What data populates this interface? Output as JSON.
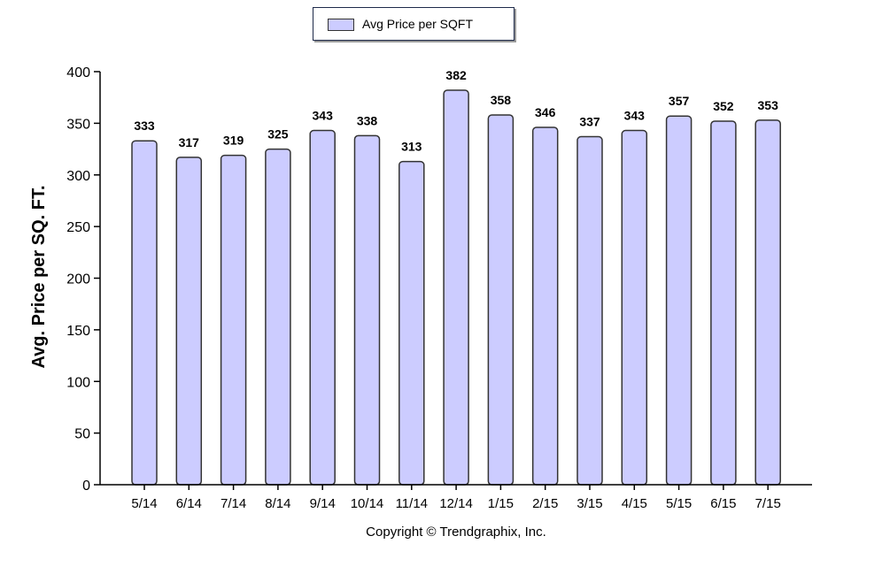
{
  "chart_data": {
    "type": "bar",
    "categories": [
      "5/14",
      "6/14",
      "7/14",
      "8/14",
      "9/14",
      "10/14",
      "11/14",
      "12/14",
      "1/15",
      "2/15",
      "3/15",
      "4/15",
      "5/15",
      "6/15",
      "7/15"
    ],
    "series": [
      {
        "name": "Avg Price per SQFT",
        "values": [
          333,
          317,
          319,
          325,
          343,
          338,
          313,
          382,
          358,
          346,
          337,
          343,
          357,
          352,
          353
        ]
      }
    ],
    "ylabel": "Avg. Price per SQ. FT.",
    "xlabel": "",
    "ylim": [
      0,
      400
    ],
    "yticks": [
      0,
      50,
      100,
      150,
      200,
      250,
      300,
      350,
      400
    ],
    "data_labels": true,
    "legend_position": "top-center",
    "grid": false,
    "bar_color": "#ccccff",
    "bar_outline": "#333333"
  },
  "footer": {
    "copyright": "Copyright © Trendgraphix, Inc."
  }
}
